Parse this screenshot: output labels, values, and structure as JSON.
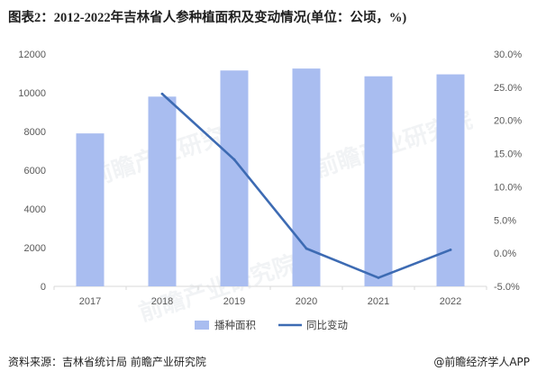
{
  "title": "图表2：2012-2022年吉林省人参种植面积及变动情况(单位：公顷，%)",
  "chart_data": {
    "type": "bar",
    "categories": [
      "2017",
      "2018",
      "2019",
      "2020",
      "2021",
      "2022"
    ],
    "series": [
      {
        "name": "播种面积",
        "type": "bar",
        "axis": "left",
        "values": [
          7900,
          9800,
          11150,
          11250,
          10850,
          10950
        ],
        "color": "#a9bdf0"
      },
      {
        "name": "同比变动",
        "type": "line",
        "axis": "right",
        "values": [
          null,
          24.0,
          14.1,
          0.7,
          -3.7,
          0.5
        ],
        "color": "#3d6bb3"
      }
    ],
    "ylim": [
      0,
      12000
    ],
    "yticks": [
      "0",
      "2000",
      "4000",
      "6000",
      "8000",
      "10000",
      "12000"
    ],
    "y2lim": [
      -5,
      30
    ],
    "y2ticks": [
      "-5.0%",
      "0.0%",
      "5.0%",
      "10.0%",
      "15.0%",
      "20.0%",
      "25.0%",
      "30.0%"
    ],
    "grid": false,
    "legend": "bottom"
  },
  "footer": {
    "source": "资料来源：吉林省统计局 前瞻产业研究院",
    "brand": "@前瞻经济学人APP"
  },
  "watermark": "前瞻产业研究院"
}
